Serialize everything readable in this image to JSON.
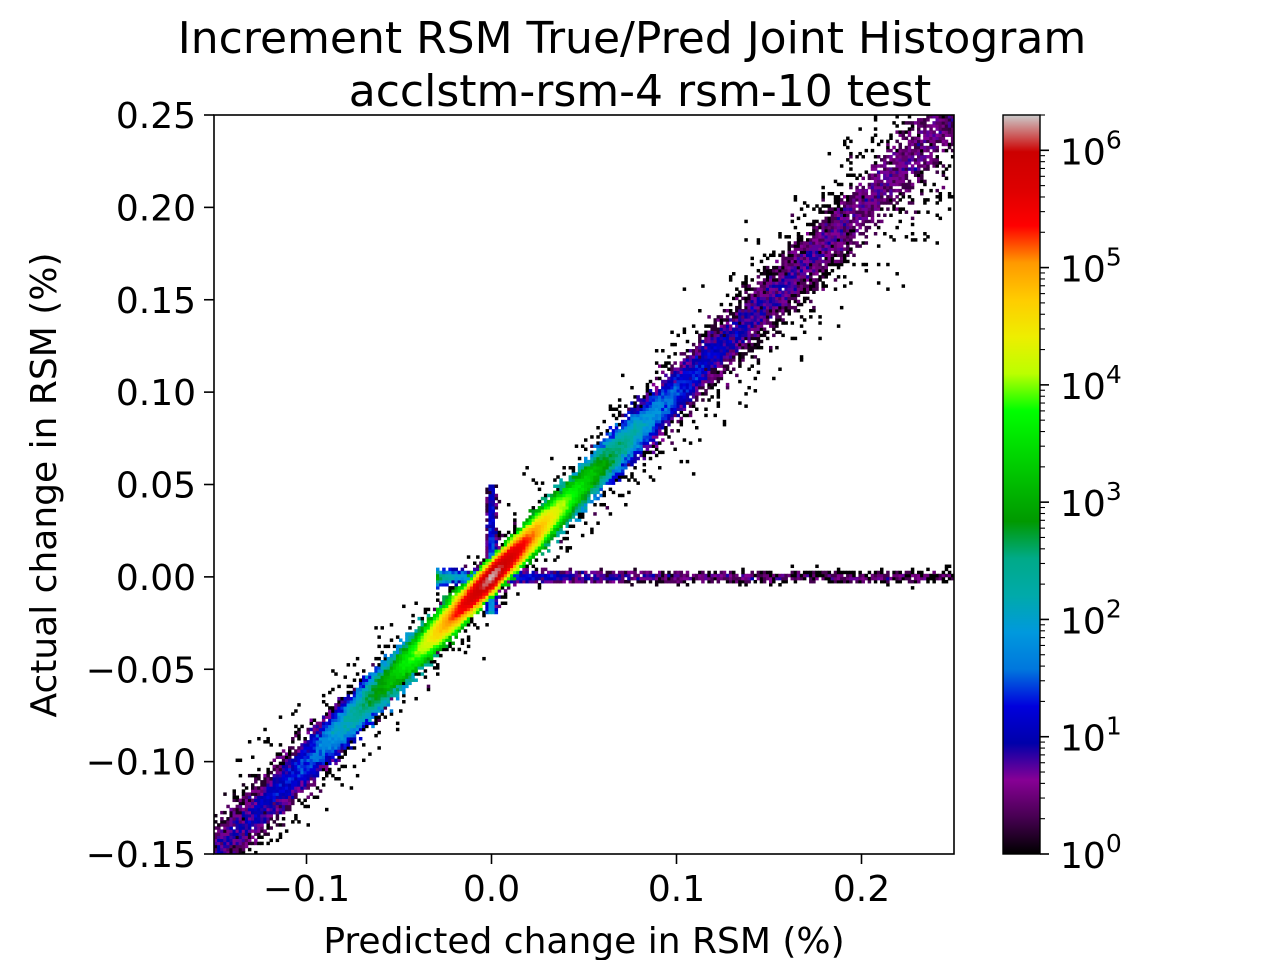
{
  "chart_data": {
    "type": "heatmap",
    "title": "Increment RSM True/Pred Joint Histogram",
    "subtitle": "acclstm-rsm-4 rsm-10 test",
    "xlabel": "Predicted change in RSM (%)",
    "ylabel": "Actual change in RSM (%)",
    "xlim": [
      -0.15,
      0.25
    ],
    "ylim": [
      -0.15,
      0.25
    ],
    "x_ticks": [
      -0.1,
      0.0,
      0.1,
      0.2
    ],
    "x_tick_labels": [
      "−0.1",
      "0.0",
      "0.1",
      "0.2"
    ],
    "y_ticks": [
      -0.15,
      -0.1,
      -0.05,
      0.0,
      0.05,
      0.1,
      0.15,
      0.2,
      0.25
    ],
    "y_tick_labels": [
      "−0.15",
      "−0.10",
      "−0.05",
      "0.00",
      "0.05",
      "0.10",
      "0.15",
      "0.20",
      "0.25"
    ],
    "grid": false,
    "colorbar": {
      "scale": "log",
      "colormap": "nipy_spectral",
      "range": [
        1,
        2000000
      ],
      "ticks": [
        1,
        10,
        100,
        1000,
        10000,
        100000,
        1000000
      ],
      "tick_labels": [
        {
          "base": "10",
          "exp": "0"
        },
        {
          "base": "10",
          "exp": "1"
        },
        {
          "base": "10",
          "exp": "2"
        },
        {
          "base": "10",
          "exp": "3"
        },
        {
          "base": "10",
          "exp": "4"
        },
        {
          "base": "10",
          "exp": "5"
        },
        {
          "base": "10",
          "exp": "6"
        }
      ]
    },
    "features": {
      "main_diagonal": {
        "from": [
          -0.15,
          -0.15
        ],
        "to": [
          0.25,
          0.25
        ],
        "peak_count": 1000000
      },
      "vertical_streak_at_x": 0.0,
      "horizontal_streak_at_y": 0.0
    }
  }
}
